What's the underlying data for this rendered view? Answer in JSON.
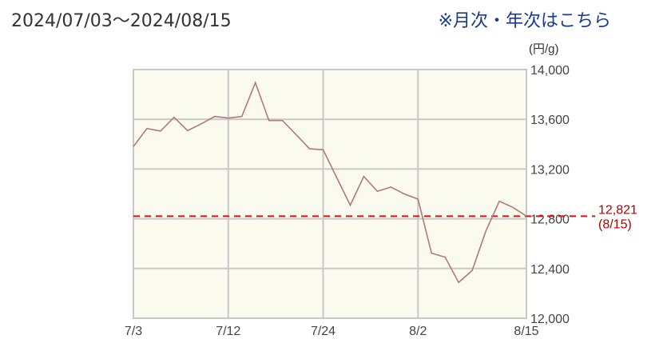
{
  "header": {
    "title": "2024/07/03～2024/08/15",
    "link": "※月次・年次はこちら"
  },
  "chart_data": {
    "type": "line",
    "unit": "(円/g)",
    "ylim": [
      12000,
      14000
    ],
    "yticks": [
      12000,
      12400,
      12800,
      13200,
      13600,
      14000
    ],
    "ytick_labels": [
      "12,000",
      "12,400",
      "12,800",
      "13,200",
      "13,600",
      "14,000"
    ],
    "x": [
      "7/3",
      "7/4",
      "7/5",
      "7/8",
      "7/9",
      "7/10",
      "7/11",
      "7/12",
      "7/16",
      "7/17",
      "7/18",
      "7/19",
      "7/22",
      "7/23",
      "7/24",
      "7/25",
      "7/26",
      "7/29",
      "7/30",
      "7/31",
      "8/1",
      "8/2",
      "8/5",
      "8/6",
      "8/7",
      "8/8",
      "8/9",
      "8/13",
      "8/14",
      "8/15"
    ],
    "xtick_labels": [
      "7/3",
      "7/12",
      "7/24",
      "8/2",
      "8/15"
    ],
    "values": [
      13381,
      13526,
      13505,
      13616,
      13509,
      13563,
      13623,
      13610,
      13623,
      13895,
      13590,
      13590,
      13477,
      13363,
      13355,
      13132,
      12909,
      13140,
      13021,
      13055,
      12999,
      12958,
      12523,
      12491,
      12288,
      12384,
      12699,
      12941,
      12892,
      12821
    ],
    "reference": {
      "value": 12821,
      "label": "12,821",
      "date_label": "(8/15)",
      "color": "#e0101a"
    },
    "line_color": "#b07a7a",
    "plot_background": "#fafaee",
    "grid": true
  }
}
